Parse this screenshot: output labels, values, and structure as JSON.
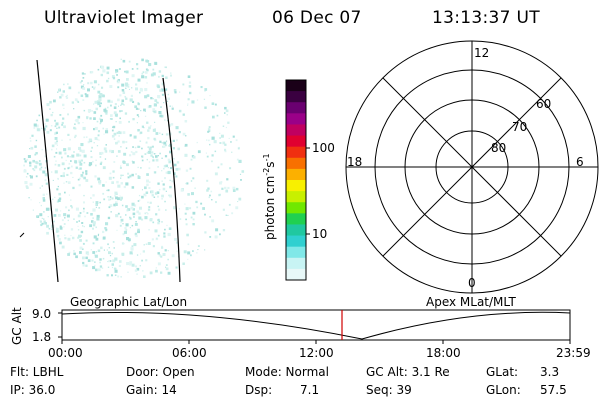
{
  "header": {
    "title": "Ultraviolet Imager",
    "date": "06 Dec 07",
    "time": "13:13:37 UT"
  },
  "colorbar": {
    "unit_main": "photon cm",
    "unit_exp1": "-2",
    "unit_mid": "s",
    "unit_exp2": "-1",
    "tick_100": "100",
    "tick_10": "10",
    "colors": [
      "#1a0018",
      "#3a0040",
      "#6a0070",
      "#9a0088",
      "#c00060",
      "#e00030",
      "#f03010",
      "#f87000",
      "#fcb000",
      "#f8f000",
      "#c8f000",
      "#70e800",
      "#20d050",
      "#20c8a0",
      "#30d0d0",
      "#80e8e8",
      "#c8f4f4",
      "#e8f8f8"
    ]
  },
  "polar": {
    "label_top": "12",
    "label_left": "18",
    "label_right": "6",
    "label_bottom": "0",
    "ring_60": "60",
    "ring_70": "70",
    "ring_80": "80"
  },
  "timeline": {
    "left_label": "Geographic Lat/Lon",
    "right_label": "Apex MLat/MLT",
    "axis_title": "GC Alt",
    "y_max": "9.0",
    "y_min": "1.8",
    "ticks": [
      "00:00",
      "06:00",
      "12:00",
      "18:00",
      "23:59"
    ]
  },
  "info": {
    "row1": {
      "flt": "Flt: LBHL",
      "door": "Door: Open",
      "mode": "Mode: Normal",
      "gcalt": "GC Alt: 3.1 Re",
      "glat_label": "GLat:",
      "glat_value": "3.3"
    },
    "row2": {
      "ip": "IP: 36.0",
      "gain": "Gain: 14",
      "dsp_label": "Dsp:",
      "dsp_value": "7.1",
      "seq": "Seq: 39",
      "glon_label": "GLon:",
      "glon_value": "57.5"
    }
  }
}
